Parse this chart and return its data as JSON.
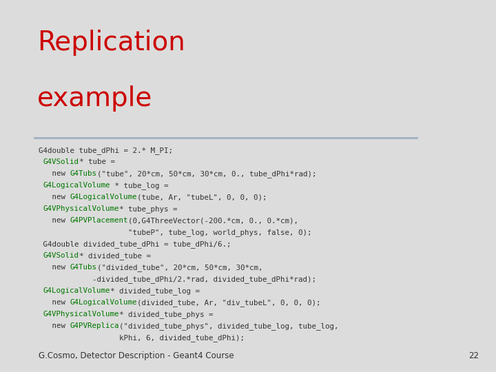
{
  "title_line1": "Replication",
  "title_line2": "example",
  "title_color": "#cc0000",
  "background_color": "#dcdcdc",
  "footer_text": "G.Cosmo, Detector Description - Geant4 Course",
  "footer_number": "22",
  "divider_color": "#a0b0c0",
  "title_fontsize": 28,
  "title_fontweight": "normal",
  "code_fontsize": 7.8,
  "footer_fontsize": 8.5,
  "code_lines": [
    [
      {
        "t": "G4double tube_dPhi = 2.* M_PI;",
        "c": "#333333"
      }
    ],
    [
      {
        "t": " ",
        "c": "#333333"
      },
      {
        "t": "G4VSolid",
        "c": "#007700"
      },
      {
        "t": "* tube =",
        "c": "#333333"
      }
    ],
    [
      {
        "t": "   new ",
        "c": "#333333"
      },
      {
        "t": "G4Tubs",
        "c": "#007700"
      },
      {
        "t": "(\"tube\", 20*cm, 50*cm, 30*cm, 0., tube_dPhi*rad);",
        "c": "#333333"
      }
    ],
    [
      {
        "t": " ",
        "c": "#333333"
      },
      {
        "t": "G4LogicalVolume",
        "c": "#007700"
      },
      {
        "t": " * tube_log =",
        "c": "#333333"
      }
    ],
    [
      {
        "t": "   new ",
        "c": "#333333"
      },
      {
        "t": "G4LogicalVolume",
        "c": "#007700"
      },
      {
        "t": "(tube, Ar, \"tubeL\", 0, 0, 0);",
        "c": "#333333"
      }
    ],
    [
      {
        "t": " ",
        "c": "#333333"
      },
      {
        "t": "G4VPhysicalVolume",
        "c": "#007700"
      },
      {
        "t": "* tube_phys =",
        "c": "#333333"
      }
    ],
    [
      {
        "t": "   new ",
        "c": "#333333"
      },
      {
        "t": "G4PVPlacement",
        "c": "#007700"
      },
      {
        "t": "(0,G4ThreeVector(-200.*cm, 0., 0.*cm),",
        "c": "#333333"
      }
    ],
    [
      {
        "t": "                    \"tubeP\", tube_log, world_phys, false, 0);",
        "c": "#333333"
      }
    ],
    [
      {
        "t": " G4double divided_tube_dPhi = tube_dPhi/6.;",
        "c": "#333333"
      }
    ],
    [
      {
        "t": " ",
        "c": "#333333"
      },
      {
        "t": "G4VSolid",
        "c": "#007700"
      },
      {
        "t": "* divided_tube =",
        "c": "#333333"
      }
    ],
    [
      {
        "t": "   new ",
        "c": "#333333"
      },
      {
        "t": "G4Tubs",
        "c": "#007700"
      },
      {
        "t": "(\"divided_tube\", 20*cm, 50*cm, 30*cm,",
        "c": "#333333"
      }
    ],
    [
      {
        "t": "            -divided_tube_dPhi/2.*rad, divided_tube_dPhi*rad);",
        "c": "#333333"
      }
    ],
    [
      {
        "t": " ",
        "c": "#333333"
      },
      {
        "t": "G4LogicalVolume",
        "c": "#007700"
      },
      {
        "t": "* divided_tube_log =",
        "c": "#333333"
      }
    ],
    [
      {
        "t": "   new ",
        "c": "#333333"
      },
      {
        "t": "G4LogicalVolume",
        "c": "#007700"
      },
      {
        "t": "(divided_tube, Ar, \"div_tubeL\", 0, 0, 0);",
        "c": "#333333"
      }
    ],
    [
      {
        "t": " ",
        "c": "#333333"
      },
      {
        "t": "G4VPhysicalVolume",
        "c": "#007700"
      },
      {
        "t": "* divided_tube_phys =",
        "c": "#333333"
      }
    ],
    [
      {
        "t": "   new ",
        "c": "#333333"
      },
      {
        "t": "G4PVReplica",
        "c": "#007700"
      },
      {
        "t": "(\"divided_tube_phys\", divided_tube_log, tube_log,",
        "c": "#333333"
      }
    ],
    [
      {
        "t": "                  kPhi, 6, divided_tube_dPhi);",
        "c": "#333333"
      }
    ]
  ]
}
